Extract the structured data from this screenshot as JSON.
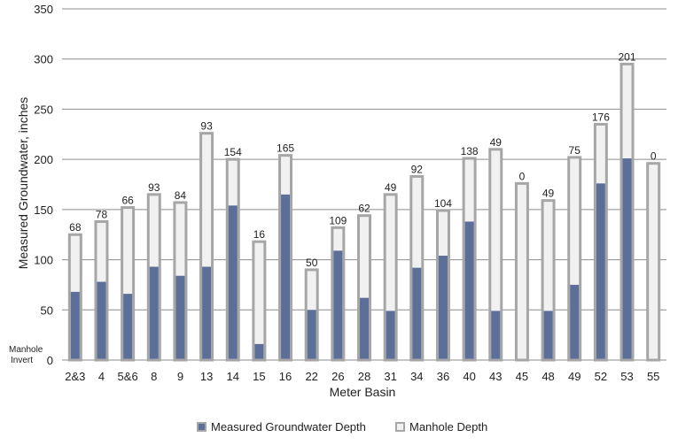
{
  "chart_data": {
    "type": "bar",
    "title": "",
    "xlabel": "Meter Basin",
    "ylabel": "Measured Groundwater, inches",
    "ylim": [
      0,
      350
    ],
    "yticks": [
      0,
      50,
      100,
      150,
      200,
      250,
      300,
      350
    ],
    "y_zero_label": [
      "Manhole",
      "Invert"
    ],
    "grid": true,
    "legend_position": "bottom",
    "categories": [
      "2&3",
      "4",
      "5&6",
      "8",
      "9",
      "13",
      "14",
      "15",
      "16",
      "22",
      "26",
      "28",
      "31",
      "34",
      "36",
      "40",
      "43",
      "45",
      "48",
      "49",
      "52",
      "53",
      "55"
    ],
    "series": [
      {
        "name": "Measured Groundwater Depth",
        "color": "#5b6f99",
        "values": [
          68,
          78,
          66,
          93,
          84,
          93,
          154,
          16,
          165,
          50,
          109,
          62,
          49,
          92,
          104,
          138,
          49,
          0,
          49,
          75,
          176,
          201,
          0
        ]
      },
      {
        "name": "Manhole Depth",
        "color": "#f1f1f1",
        "border_color": "#a6a6a6",
        "values": [
          125,
          138,
          152,
          165,
          157,
          226,
          200,
          118,
          204,
          90,
          132,
          144,
          165,
          183,
          149,
          201,
          210,
          176,
          159,
          202,
          235,
          295,
          196
        ]
      }
    ],
    "data_labels": [
      "68",
      "78",
      "66",
      "93",
      "84",
      "93",
      "154",
      "16",
      "165",
      "50",
      "109",
      "62",
      "49",
      "92",
      "104",
      "138",
      "49",
      "0",
      "49",
      "75",
      "176",
      "201",
      "0"
    ]
  }
}
